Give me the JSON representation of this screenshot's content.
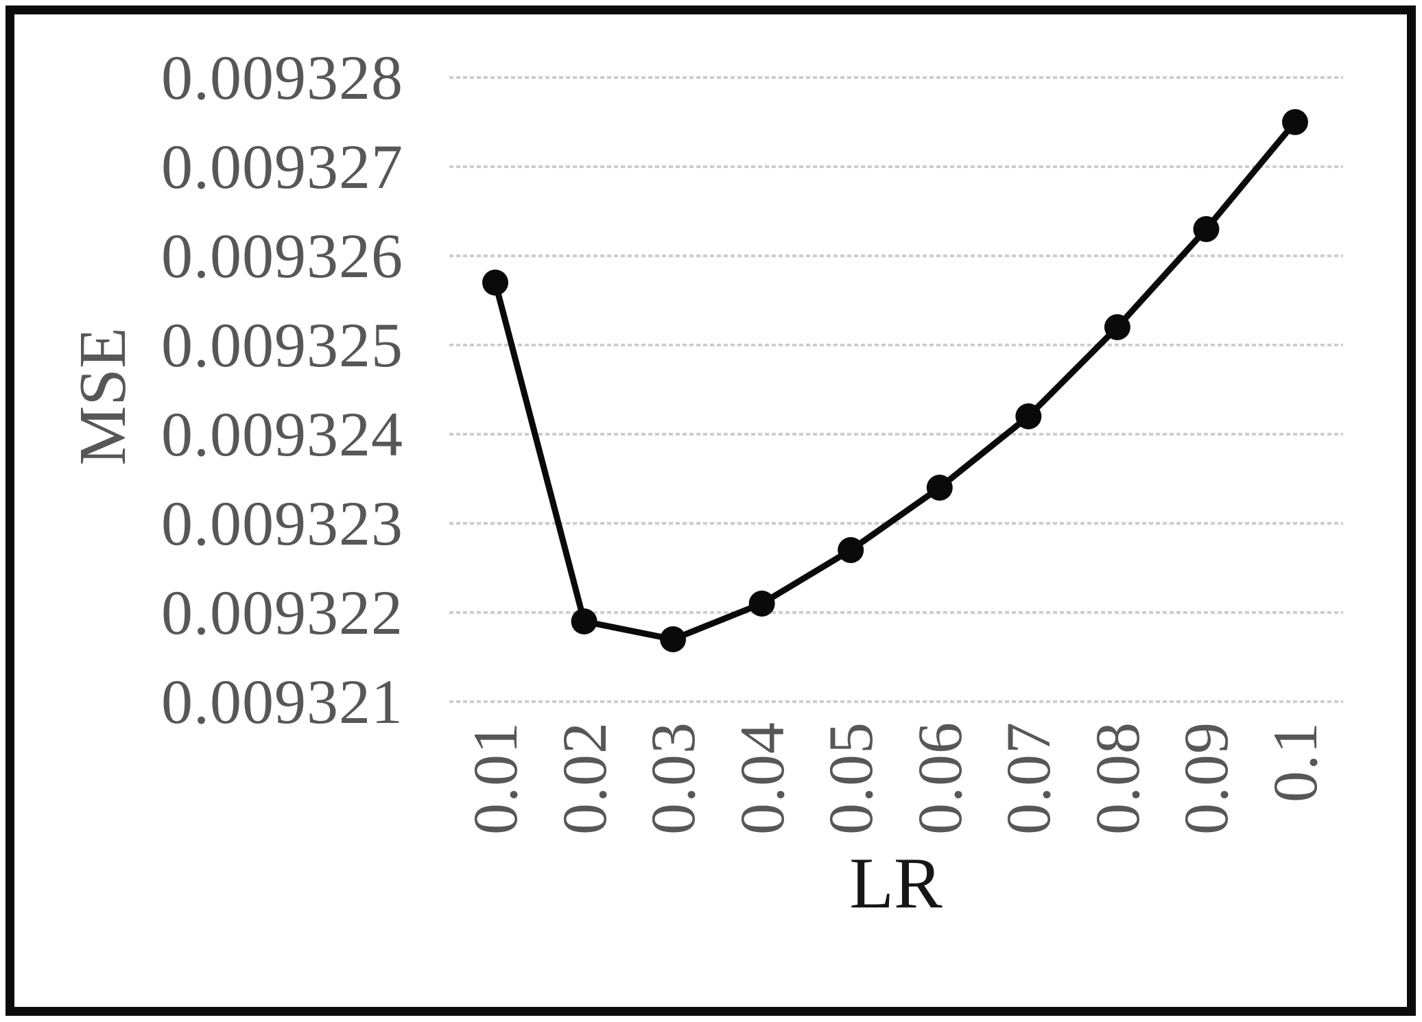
{
  "figure": {
    "y_axis_title": "MSE",
    "x_axis_title": "LR"
  },
  "chart_data": {
    "type": "line",
    "title": "",
    "xlabel": "LR",
    "ylabel": "MSE",
    "categories": [
      "0.01",
      "0.02",
      "0.03",
      "0.04",
      "0.05",
      "0.06",
      "0.07",
      "0.08",
      "0.09",
      "0.1"
    ],
    "series": [
      {
        "name": "MSE",
        "values": [
          0.0093257,
          0.0093219,
          0.0093217,
          0.0093221,
          0.0093227,
          0.0093234,
          0.0093242,
          0.0093252,
          0.0093263,
          0.0093275
        ]
      }
    ],
    "ylim": [
      0.009321,
      0.009328
    ],
    "ytick_step": 1e-06,
    "ytick_labels": [
      "0.009321",
      "0.009322",
      "0.009323",
      "0.009324",
      "0.009325",
      "0.009326",
      "0.009327",
      "0.009328"
    ],
    "grid": true,
    "legend_position": "none",
    "marker": "circle",
    "colors": {
      "line": "#0a0a0a",
      "marker": "#0a0a0a",
      "gridline": "#cdcdcd",
      "tick_label": "#575757",
      "y_title": "#575757",
      "x_title": "#161616",
      "frame_border": "#0b0b0b",
      "background": "#ffffff"
    }
  }
}
